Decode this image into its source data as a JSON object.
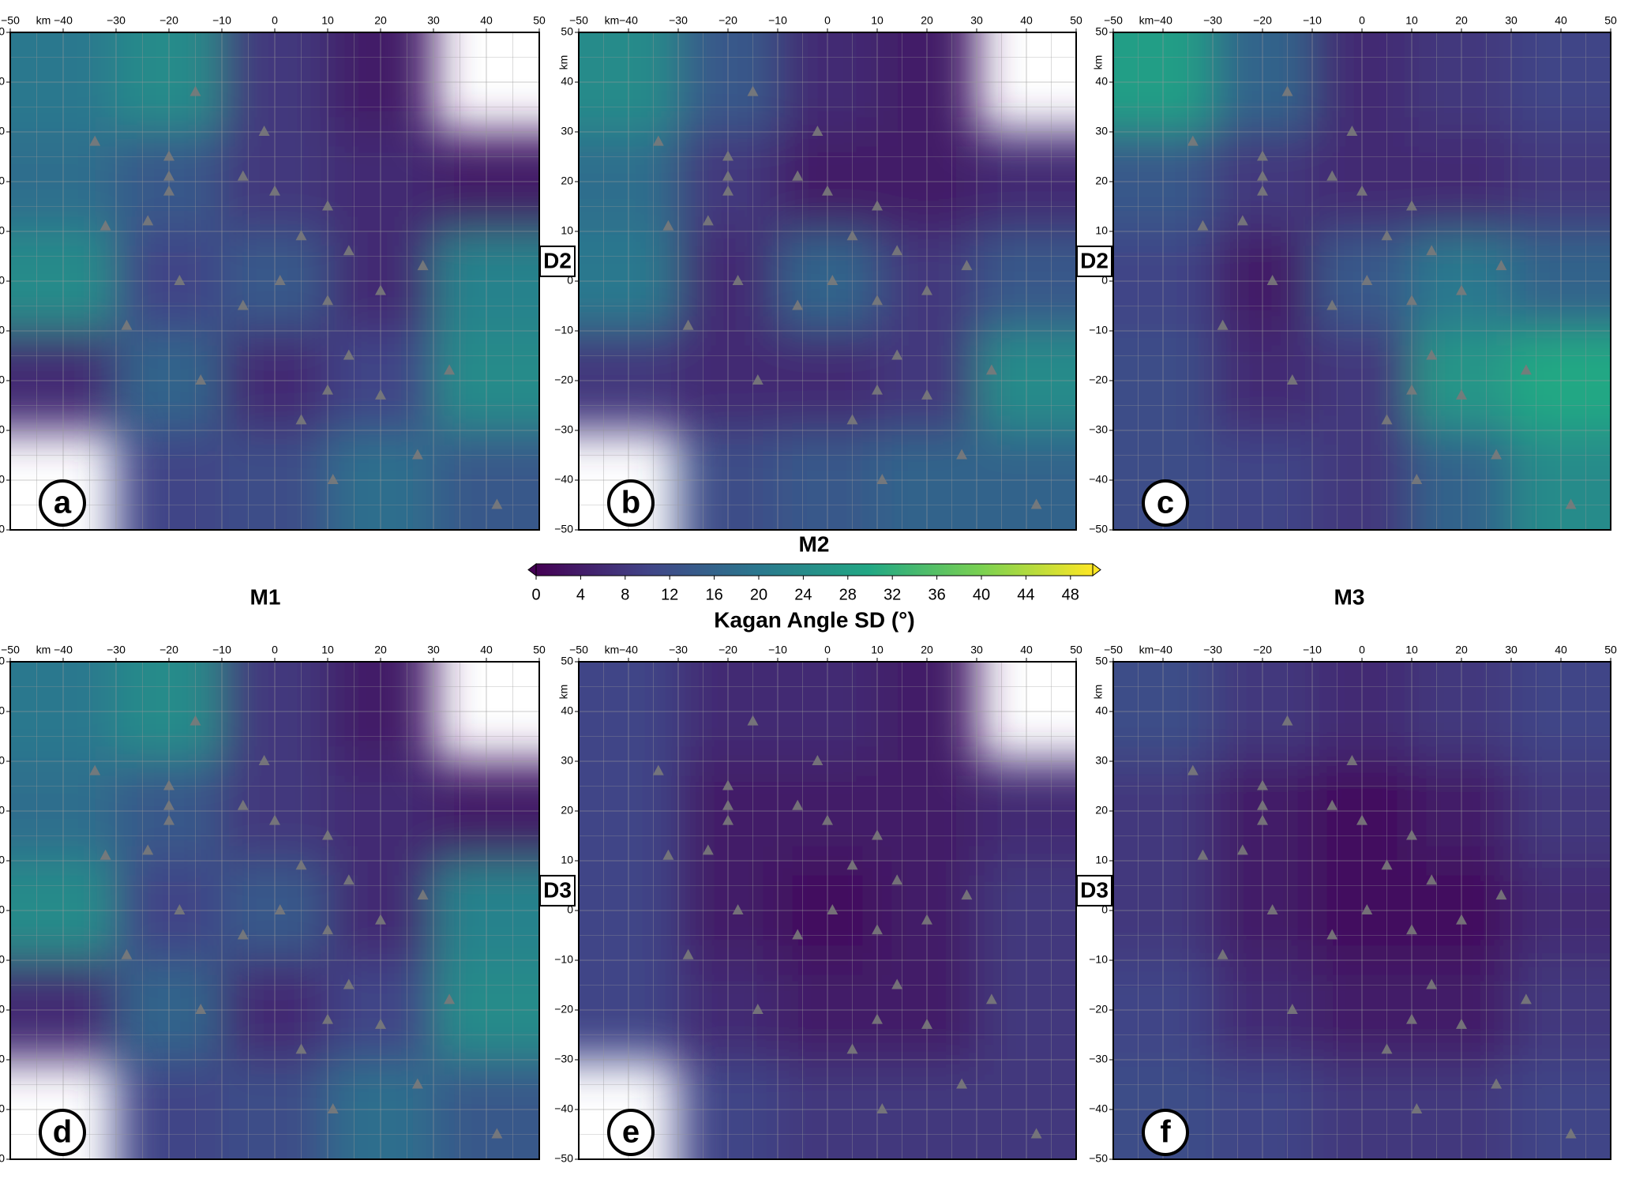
{
  "column_titles": [
    "M1",
    "M2",
    "M3"
  ],
  "chart_data": [
    {
      "type": "contour",
      "panel_label": "a",
      "side_label": "D2",
      "axis_label": "km",
      "xlim": [
        -50,
        50
      ],
      "ylim": [
        -50,
        50
      ],
      "xticks": [
        {
          "value": -50,
          "label": "−50"
        },
        {
          "value": -40,
          "label": "−40"
        },
        {
          "value": -30,
          "label": "−30"
        },
        {
          "value": -20,
          "label": "−20"
        },
        {
          "value": -10,
          "label": "−10"
        },
        0,
        10,
        20,
        30,
        40,
        50
      ],
      "yticks": [
        {
          "value": -50,
          "label": "−50"
        },
        {
          "value": -40,
          "label": "−40"
        },
        {
          "value": -30,
          "label": "−30"
        },
        {
          "value": -20,
          "label": "−20"
        },
        {
          "value": -10,
          "label": "−10"
        },
        0,
        10,
        20,
        30,
        40,
        50
      ],
      "minor_ticks": [
        -45,
        -35,
        -25,
        -15,
        -5,
        5,
        15,
        25,
        35,
        45
      ],
      "grid_x": [
        -40,
        -20,
        0,
        20,
        40
      ],
      "grid_y": [
        40,
        20,
        0,
        -20,
        -40
      ],
      "z": [
        [
          20,
          24,
          8,
          4,
          null
        ],
        [
          18,
          14,
          8,
          6,
          4
        ],
        [
          24,
          10,
          14,
          6,
          22
        ],
        [
          6,
          16,
          6,
          10,
          24
        ],
        [
          null,
          10,
          12,
          18,
          14
        ]
      ],
      "stations": {
        "color": "#7a7a7a",
        "x": [
          -34,
          -32,
          -24,
          -20,
          -20,
          -20,
          -15,
          -6,
          -2,
          0,
          -18,
          -6,
          -28,
          -14,
          5,
          1,
          10,
          14,
          20,
          28,
          10,
          14,
          10,
          20,
          5,
          27,
          11,
          33,
          42
        ],
        "y": [
          28,
          11,
          12,
          25,
          21,
          18,
          38,
          21,
          30,
          18,
          0,
          -5,
          -9,
          -20,
          9,
          0,
          15,
          6,
          -2,
          3,
          -4,
          -15,
          -22,
          -23,
          -28,
          -35,
          -40,
          -18,
          -45
        ]
      }
    },
    {
      "type": "contour",
      "panel_label": "b",
      "side_label": "D2",
      "axis_label": "km",
      "xlim": [
        -50,
        50
      ],
      "ylim": [
        -50,
        50
      ],
      "xticks": [
        {
          "value": -50,
          "label": "−50"
        },
        {
          "value": -40,
          "label": "−40"
        },
        {
          "value": -30,
          "label": "−30"
        },
        {
          "value": -20,
          "label": "−20"
        },
        {
          "value": -10,
          "label": "−10"
        },
        0,
        10,
        20,
        30,
        40,
        50
      ],
      "yticks": [
        {
          "value": -50,
          "label": "−50"
        },
        {
          "value": -40,
          "label": "−40"
        },
        {
          "value": -30,
          "label": "−30"
        },
        {
          "value": -20,
          "label": "−20"
        },
        {
          "value": -10,
          "label": "−10"
        },
        0,
        10,
        20,
        30,
        40,
        50
      ],
      "minor_ticks": [
        -45,
        -35,
        -25,
        -15,
        -5,
        5,
        15,
        25,
        35,
        45
      ],
      "grid_x": [
        -40,
        -20,
        0,
        20,
        40
      ],
      "grid_y": [
        40,
        20,
        0,
        -20,
        -40
      ],
      "z": [
        [
          24,
          14,
          6,
          4,
          null
        ],
        [
          18,
          8,
          4,
          4,
          6
        ],
        [
          20,
          6,
          16,
          8,
          14
        ],
        [
          8,
          6,
          6,
          8,
          24
        ],
        [
          null,
          12,
          14,
          16,
          16
        ]
      ],
      "stations": {
        "color": "#7a7a7a",
        "x": [
          -34,
          -32,
          -24,
          -20,
          -20,
          -20,
          -15,
          -6,
          -2,
          0,
          -18,
          -6,
          -28,
          -14,
          5,
          1,
          10,
          14,
          20,
          28,
          10,
          14,
          10,
          20,
          5,
          27,
          11,
          33,
          42
        ],
        "y": [
          28,
          11,
          12,
          25,
          21,
          18,
          38,
          21,
          30,
          18,
          0,
          -5,
          -9,
          -20,
          9,
          0,
          15,
          6,
          -2,
          3,
          -4,
          -15,
          -22,
          -23,
          -28,
          -35,
          -40,
          -18,
          -45
        ]
      }
    },
    {
      "type": "contour",
      "panel_label": "c",
      "axis_label": "km",
      "xlim": [
        -50,
        50
      ],
      "ylim": [
        -50,
        50
      ],
      "xticks": [
        {
          "value": -50,
          "label": "−50"
        },
        {
          "value": -40,
          "label": "−40"
        },
        {
          "value": -30,
          "label": "−30"
        },
        {
          "value": -20,
          "label": "−20"
        },
        {
          "value": -10,
          "label": "−10"
        },
        0,
        10,
        20,
        30,
        40,
        50
      ],
      "yticks": [
        {
          "value": -50,
          "label": "−50"
        },
        {
          "value": -40,
          "label": "−40"
        },
        {
          "value": -30,
          "label": "−30"
        },
        {
          "value": -20,
          "label": "−20"
        },
        {
          "value": -10,
          "label": "−10"
        },
        0,
        10,
        20,
        30,
        40,
        50
      ],
      "minor_ticks": [
        -45,
        -35,
        -25,
        -15,
        -5,
        5,
        15,
        25,
        35,
        45
      ],
      "grid_x": [
        -40,
        -20,
        0,
        20,
        40
      ],
      "grid_y": [
        40,
        20,
        0,
        -20,
        -40
      ],
      "z": [
        [
          28,
          16,
          6,
          8,
          10
        ],
        [
          14,
          8,
          6,
          6,
          8
        ],
        [
          10,
          4,
          14,
          20,
          16
        ],
        [
          12,
          6,
          8,
          26,
          30
        ],
        [
          12,
          10,
          8,
          16,
          24
        ]
      ],
      "stations": {
        "color": "#7a7a7a",
        "x": [
          -34,
          -32,
          -24,
          -20,
          -20,
          -20,
          -15,
          -6,
          -2,
          0,
          -18,
          -6,
          -28,
          -14,
          5,
          1,
          10,
          14,
          20,
          28,
          10,
          14,
          10,
          20,
          5,
          27,
          11,
          33,
          42
        ],
        "y": [
          28,
          11,
          12,
          25,
          21,
          18,
          38,
          21,
          30,
          18,
          0,
          -5,
          -9,
          -20,
          9,
          0,
          15,
          6,
          -2,
          3,
          -4,
          -15,
          -22,
          -23,
          -28,
          -35,
          -40,
          -18,
          -45
        ]
      }
    },
    {
      "type": "contour",
      "panel_label": "d",
      "side_label": "D3",
      "axis_label": "km",
      "xlim": [
        -50,
        50
      ],
      "ylim": [
        -50,
        50
      ],
      "xticks": [
        {
          "value": -50,
          "label": "−50"
        },
        {
          "value": -40,
          "label": "−40"
        },
        {
          "value": -30,
          "label": "−30"
        },
        {
          "value": -20,
          "label": "−20"
        },
        {
          "value": -10,
          "label": "−10"
        },
        0,
        10,
        20,
        30,
        40,
        50
      ],
      "yticks": [
        {
          "value": -50,
          "label": "−50"
        },
        {
          "value": -40,
          "label": "−40"
        },
        {
          "value": -30,
          "label": "−30"
        },
        {
          "value": -20,
          "label": "−20"
        },
        {
          "value": -10,
          "label": "−10"
        },
        0,
        10,
        20,
        30,
        40,
        50
      ],
      "minor_ticks": [
        -45,
        -35,
        -25,
        -15,
        -5,
        5,
        15,
        25,
        35,
        45
      ],
      "grid_x": [
        -40,
        -20,
        0,
        20,
        40
      ],
      "grid_y": [
        40,
        20,
        0,
        -20,
        -40
      ],
      "z": [
        [
          20,
          24,
          8,
          4,
          null
        ],
        [
          18,
          14,
          8,
          6,
          4
        ],
        [
          24,
          10,
          14,
          6,
          22
        ],
        [
          6,
          16,
          6,
          10,
          24
        ],
        [
          null,
          10,
          12,
          18,
          14
        ]
      ],
      "stations": {
        "color": "#7a7a7a",
        "x": [
          -34,
          -32,
          -24,
          -20,
          -20,
          -20,
          -15,
          -6,
          -2,
          0,
          -18,
          -6,
          -28,
          -14,
          5,
          1,
          10,
          14,
          20,
          28,
          10,
          14,
          10,
          20,
          5,
          27,
          11,
          33,
          42
        ],
        "y": [
          28,
          11,
          12,
          25,
          21,
          18,
          38,
          21,
          30,
          18,
          0,
          -5,
          -9,
          -20,
          9,
          0,
          15,
          6,
          -2,
          3,
          -4,
          -15,
          -22,
          -23,
          -28,
          -35,
          -40,
          -18,
          -45
        ]
      }
    },
    {
      "type": "contour",
      "panel_label": "e",
      "side_label": "D3",
      "axis_label": "km",
      "xlim": [
        -50,
        50
      ],
      "ylim": [
        -50,
        50
      ],
      "xticks": [
        {
          "value": -50,
          "label": "−50"
        },
        {
          "value": -40,
          "label": "−40"
        },
        {
          "value": -30,
          "label": "−30"
        },
        {
          "value": -20,
          "label": "−20"
        },
        {
          "value": -10,
          "label": "−10"
        },
        0,
        10,
        20,
        30,
        40,
        50
      ],
      "yticks": [
        {
          "value": -50,
          "label": "−50"
        },
        {
          "value": -40,
          "label": "−40"
        },
        {
          "value": -30,
          "label": "−30"
        },
        {
          "value": -20,
          "label": "−20"
        },
        {
          "value": -10,
          "label": "−10"
        },
        0,
        10,
        20,
        30,
        40,
        50
      ],
      "minor_ticks": [
        -45,
        -35,
        -25,
        -15,
        -5,
        5,
        15,
        25,
        35,
        45
      ],
      "grid_x": [
        -40,
        -20,
        0,
        20,
        40
      ],
      "grid_y": [
        40,
        20,
        0,
        -20,
        -40
      ],
      "z": [
        [
          10,
          6,
          6,
          4,
          null
        ],
        [
          10,
          4,
          4,
          4,
          6
        ],
        [
          10,
          4,
          2,
          4,
          8
        ],
        [
          10,
          6,
          4,
          4,
          8
        ],
        [
          null,
          10,
          8,
          8,
          8
        ]
      ],
      "stations": {
        "color": "#7a7a7a",
        "x": [
          -34,
          -32,
          -24,
          -20,
          -20,
          -20,
          -15,
          -6,
          -2,
          0,
          -18,
          -6,
          -28,
          -14,
          5,
          1,
          10,
          14,
          20,
          28,
          10,
          14,
          10,
          20,
          5,
          27,
          11,
          33,
          42
        ],
        "y": [
          28,
          11,
          12,
          25,
          21,
          18,
          38,
          21,
          30,
          18,
          0,
          -5,
          -9,
          -20,
          9,
          0,
          15,
          6,
          -2,
          3,
          -4,
          -15,
          -22,
          -23,
          -28,
          -35,
          -40,
          -18,
          -45
        ]
      }
    },
    {
      "type": "contour",
      "panel_label": "f",
      "axis_label": "km",
      "xlim": [
        -50,
        50
      ],
      "ylim": [
        -50,
        50
      ],
      "xticks": [
        {
          "value": -50,
          "label": "−50"
        },
        {
          "value": -40,
          "label": "−40"
        },
        {
          "value": -30,
          "label": "−30"
        },
        {
          "value": -20,
          "label": "−20"
        },
        {
          "value": -10,
          "label": "−10"
        },
        0,
        10,
        20,
        30,
        40,
        50
      ],
      "yticks": [
        {
          "value": -50,
          "label": "−50"
        },
        {
          "value": -40,
          "label": "−40"
        },
        {
          "value": -30,
          "label": "−30"
        },
        {
          "value": -20,
          "label": "−20"
        },
        {
          "value": -10,
          "label": "−10"
        },
        0,
        10,
        20,
        30,
        40,
        50
      ],
      "minor_ticks": [
        -45,
        -35,
        -25,
        -15,
        -5,
        5,
        15,
        25,
        35,
        45
      ],
      "grid_x": [
        -40,
        -20,
        0,
        20,
        40
      ],
      "grid_y": [
        40,
        20,
        0,
        -20,
        -40
      ],
      "z": [
        [
          12,
          8,
          6,
          8,
          10
        ],
        [
          8,
          4,
          2,
          4,
          8
        ],
        [
          8,
          4,
          2,
          2,
          6
        ],
        [
          10,
          6,
          4,
          4,
          8
        ],
        [
          12,
          10,
          8,
          8,
          10
        ]
      ],
      "stations": {
        "color": "#7a7a7a",
        "x": [
          -34,
          -32,
          -24,
          -20,
          -20,
          -20,
          -15,
          -6,
          -2,
          0,
          -18,
          -6,
          -28,
          -14,
          5,
          1,
          10,
          14,
          20,
          28,
          10,
          14,
          10,
          20,
          5,
          27,
          11,
          33,
          42
        ],
        "y": [
          28,
          11,
          12,
          25,
          21,
          18,
          38,
          21,
          30,
          18,
          0,
          -5,
          -9,
          -20,
          9,
          0,
          15,
          6,
          -2,
          3,
          -4,
          -15,
          -22,
          -23,
          -28,
          -35,
          -40,
          -18,
          -45
        ]
      }
    },
    {
      "type": "colorbar",
      "title": "Kagan Angle SD (°)",
      "xlim": [
        0,
        50
      ],
      "xticks": [
        0,
        4,
        8,
        12,
        16,
        20,
        24,
        28,
        32,
        36,
        40,
        44,
        48
      ],
      "colors": [
        "#440154",
        "#414487",
        "#2a788e",
        "#22a884",
        "#7ad151",
        "#fde725"
      ]
    }
  ]
}
